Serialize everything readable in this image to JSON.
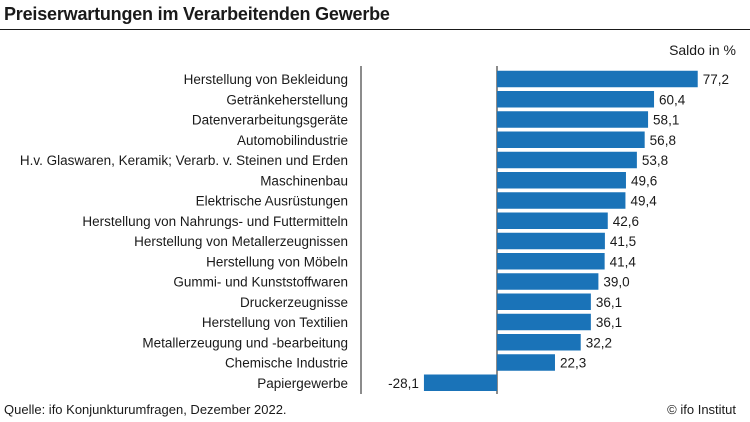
{
  "header": {
    "title": "Preiserwartungen im Verarbeitenden Gewerbe"
  },
  "chart_data": {
    "type": "bar",
    "orientation": "horizontal",
    "title": "Preiserwartungen im Verarbeitenden Gewerbe",
    "unit_label": "Saldo in %",
    "bar_color": "#1a73b8",
    "categories": [
      "Herstellung von Bekleidung",
      "Getränkeherstellung",
      "Datenverarbeitungsgeräte",
      "Automobilindustrie",
      "H.v. Glaswaren, Keramik; Verarb. v. Steinen und Erden",
      "Maschinenbau",
      "Elektrische Ausrüstungen",
      "Herstellung von Nahrungs- und Futtermitteln",
      "Herstellung von Metallerzeugnissen",
      "Herstellung von Möbeln",
      "Gummi- und Kunststoffwaren",
      "Druckerzeugnisse",
      "Herstellung von Textilien",
      "Metallerzeugung und -bearbeitung",
      "Chemische Industrie",
      "Papiergewerbe"
    ],
    "values": [
      77.2,
      60.4,
      58.1,
      56.8,
      53.8,
      49.6,
      49.4,
      42.6,
      41.5,
      41.4,
      39.0,
      36.1,
      36.1,
      32.2,
      22.3,
      -28.1
    ],
    "value_labels": [
      "77,2",
      "60,4",
      "58,1",
      "56,8",
      "53,8",
      "49,6",
      "49,4",
      "42,6",
      "41,5",
      "41,4",
      "39,0",
      "36,1",
      "36,1",
      "32,2",
      "22,3",
      "-28,1"
    ]
  },
  "footer": {
    "source": "Quelle: ifo Konjunkturumfragen, Dezember 2022.",
    "copyright": "© ifo Institut"
  }
}
